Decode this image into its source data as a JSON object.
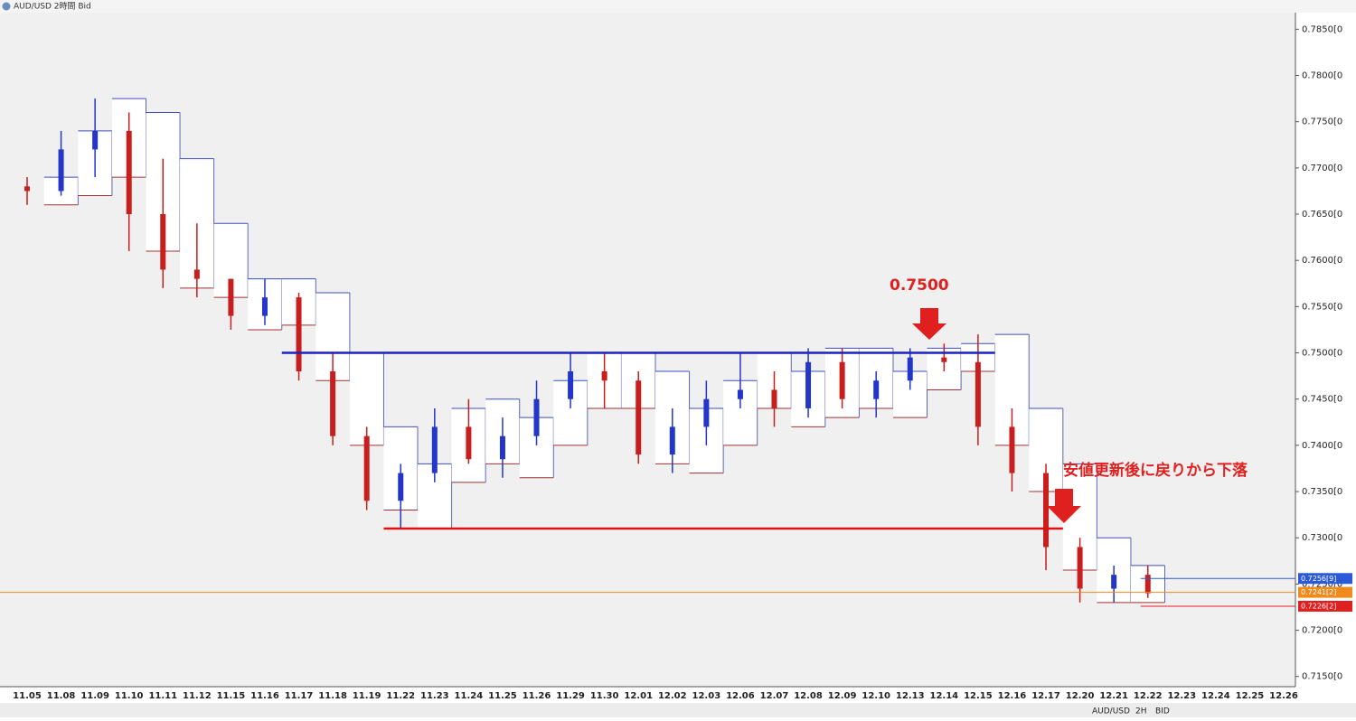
{
  "chart_data": {
    "type": "candlestick",
    "title": "AUD/USD 2時間 Bid",
    "categories": [
      "11.05",
      "11.08",
      "11.09",
      "11.10",
      "11.11",
      "11.12",
      "11.15",
      "11.16",
      "11.17",
      "11.18",
      "11.19",
      "11.22",
      "11.23",
      "11.24",
      "11.25",
      "11.26",
      "11.29",
      "11.30",
      "12.01",
      "12.02",
      "12.03",
      "12.06",
      "12.07",
      "12.08",
      "12.09",
      "12.10",
      "12.13",
      "12.14",
      "12.15",
      "12.16",
      "12.17",
      "12.20",
      "12.21",
      "12.22",
      "12.23",
      "12.24",
      "12.25",
      "12.26"
    ],
    "open": [
      0.768,
      0.7675,
      0.772,
      0.774,
      0.765,
      0.759,
      0.758,
      0.754,
      0.756,
      0.748,
      0.741,
      0.734,
      0.737,
      0.742,
      0.7385,
      0.741,
      0.745,
      0.748,
      0.747,
      0.739,
      0.742,
      0.745,
      0.746,
      0.744,
      0.749,
      0.745,
      0.747,
      0.7495,
      0.749,
      0.742,
      0.737,
      0.729,
      0.7245,
      0.726,
      null,
      null,
      null,
      null
    ],
    "high": [
      0.769,
      0.774,
      0.7775,
      0.776,
      0.771,
      0.764,
      0.758,
      0.758,
      0.7565,
      0.75,
      0.742,
      0.738,
      0.744,
      0.745,
      0.743,
      0.747,
      0.75,
      0.75,
      0.748,
      0.744,
      0.747,
      0.75,
      0.748,
      0.7505,
      0.7505,
      0.748,
      0.7505,
      0.751,
      0.752,
      0.744,
      0.738,
      0.73,
      0.727,
      0.727,
      null,
      null,
      null,
      null
    ],
    "low": [
      0.766,
      0.767,
      0.769,
      0.761,
      0.757,
      0.756,
      0.7525,
      0.753,
      0.747,
      0.74,
      0.733,
      0.731,
      0.736,
      0.738,
      0.7365,
      0.74,
      0.744,
      0.744,
      0.738,
      0.737,
      0.74,
      0.744,
      0.742,
      0.743,
      0.744,
      0.743,
      0.746,
      0.748,
      0.74,
      0.735,
      0.7265,
      0.723,
      0.723,
      0.7235,
      null,
      null,
      null,
      null
    ],
    "close": [
      0.7675,
      0.772,
      0.774,
      0.765,
      0.759,
      0.758,
      0.754,
      0.756,
      0.748,
      0.741,
      0.734,
      0.737,
      0.742,
      0.7385,
      0.741,
      0.745,
      0.748,
      0.747,
      0.739,
      0.742,
      0.745,
      0.746,
      0.744,
      0.749,
      0.745,
      0.747,
      0.7495,
      0.749,
      0.742,
      0.737,
      0.729,
      0.7245,
      0.726,
      0.724,
      null,
      null,
      null,
      null
    ],
    "up_color": "#2436c8",
    "down_color": "#c81e1e",
    "ylim": [
      0.7139,
      0.7864
    ],
    "yticks": [
      {
        "value": 0.715,
        "label": "0.7150[0"
      },
      {
        "value": 0.72,
        "label": "0.7200[0"
      },
      {
        "value": 0.725,
        "label": "0.7250[0"
      },
      {
        "value": 0.73,
        "label": "0.7300[0"
      },
      {
        "value": 0.735,
        "label": "0.7350[0"
      },
      {
        "value": 0.74,
        "label": "0.7400[0"
      },
      {
        "value": 0.745,
        "label": "0.7450[0"
      },
      {
        "value": 0.75,
        "label": "0.7500[0"
      },
      {
        "value": 0.755,
        "label": "0.7550[0"
      },
      {
        "value": 0.76,
        "label": "0.7600[0"
      },
      {
        "value": 0.765,
        "label": "0.7650[0"
      },
      {
        "value": 0.77,
        "label": "0.7700[0"
      },
      {
        "value": 0.775,
        "label": "0.7750[0"
      },
      {
        "value": 0.78,
        "label": "0.7800[0"
      },
      {
        "value": 0.785,
        "label": "0.7850[0"
      }
    ],
    "grid": false,
    "lines": [
      {
        "value": 0.75,
        "color": "#1a22c0",
        "start": "11.17",
        "end": "12.15"
      },
      {
        "value": 0.731,
        "color": "#e01010",
        "start": "11.22",
        "end": "12.17"
      }
    ],
    "price_lines": [
      {
        "value": 0.7256,
        "label": "0.7256[9]",
        "color": "#2a5ad8"
      },
      {
        "value": 0.7241,
        "label": "0.7241[2]",
        "color": "#f08a1c"
      },
      {
        "value": 0.7226,
        "label": "0.7226[2]",
        "color": "#e02020"
      }
    ],
    "annotations": [
      "0.7500",
      "安値更新後に戻りから下落"
    ]
  },
  "toolbar": [
    "AUD/USD",
    "2H",
    "BID"
  ]
}
